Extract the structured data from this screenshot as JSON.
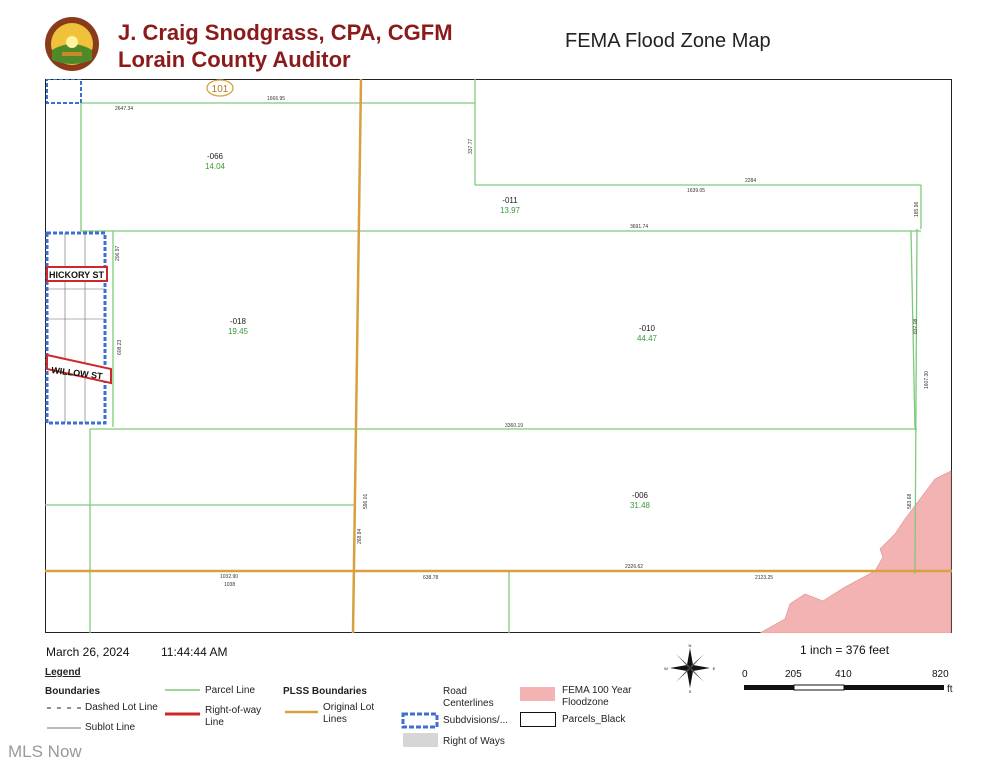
{
  "header": {
    "auditor_name": "J. Craig Snodgrass, CPA, CGFM",
    "auditor_title": "Lorain County Auditor",
    "map_title": "FEMA Flood Zone Map"
  },
  "map": {
    "route_shield": "101",
    "streets": [
      "HICKORY ST",
      "WILLOW ST"
    ],
    "parcels": [
      {
        "id": "-066",
        "acres": "14.04"
      },
      {
        "id": "-011",
        "acres": "13.97"
      },
      {
        "id": "-018",
        "acres": "19.45"
      },
      {
        "id": "-010",
        "acres": "44.47"
      },
      {
        "id": "-006",
        "acres": "31.48"
      }
    ],
    "dimensions": [
      "2647.34",
      "1666.95",
      "337.77",
      "1639.05",
      "2284",
      "185.96",
      "3691.74",
      "206.97",
      "608.23",
      "837.08",
      "1607.30",
      "3360.19",
      "596.01",
      "268.84",
      "583.68",
      "1032.90",
      "1038",
      "638.78",
      "2326.62",
      "2123.25"
    ],
    "colors": {
      "parcel_line": "#7fc97a",
      "plss_line": "#d9a040",
      "right_of_way": "#cc2a2a",
      "subdivision": "#3d6fd0",
      "floodzone": "#f4b3b3",
      "acres_text": "#3a9a3a"
    }
  },
  "footer": {
    "date": "March 26, 2024",
    "time": "11:44:44 AM",
    "scale_text": "1 inch = 376 feet",
    "scale_ticks": [
      "0",
      "205",
      "410",
      "820"
    ],
    "scale_unit": "ft",
    "compass": [
      "N",
      "E",
      "S",
      "W"
    ]
  },
  "legend": {
    "title": "Legend",
    "boundaries_title": "Boundaries",
    "dashed_lot_line": "Dashed Lot Line",
    "sublot_line": "Sublot Line",
    "parcel_line": "Parcel Line",
    "right_of_way_line": "Right-of-way Line",
    "plss_title": "PLSS Boundaries",
    "original_lot_lines": "Original Lot Lines",
    "road_centerlines": "Road Centerlines",
    "subdivisions": "Subdvisions/...",
    "right_of_ways": "Right of Ways",
    "fema": "FEMA 100 Year Floodzone",
    "parcels_black": "Parcels_Black"
  },
  "watermark": "MLS Now"
}
